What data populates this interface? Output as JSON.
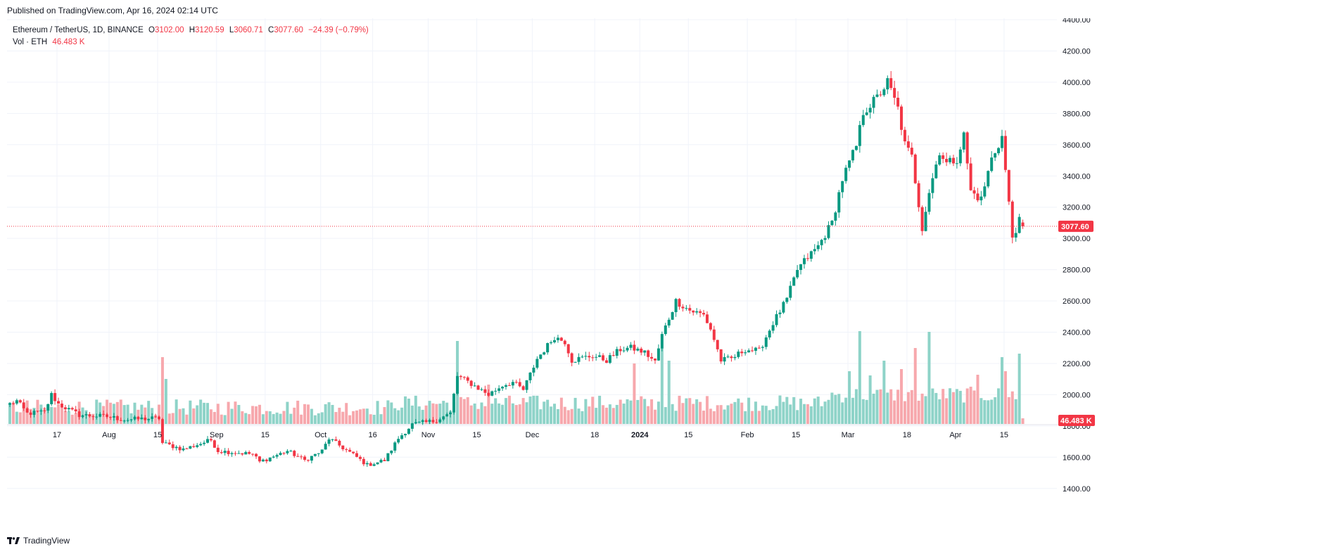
{
  "header": {
    "published": "Published on TradingView.com, Apr 16, 2024 02:14 UTC"
  },
  "legend": {
    "symbol": "Ethereum / TetherUS, 1D, BINANCE",
    "open_label": "O",
    "open": "3102.00",
    "high_label": "H",
    "high": "3120.59",
    "low_label": "L",
    "low": "3060.71",
    "close_label": "C",
    "close": "3077.60",
    "change": "−24.39 (−0.79%)",
    "vol_label": "Vol · ETH",
    "vol_value": "46.483 K"
  },
  "footer": {
    "brand": "TradingView"
  },
  "colors": {
    "up": "#089981",
    "down": "#f23645",
    "vol_up": "#8ed3c8",
    "vol_down": "#f7a8ad",
    "grid": "#f0f3fa",
    "axis_text": "#131722"
  },
  "chart_data": {
    "type": "candlestick",
    "price_axis": {
      "ticks": [
        "4400.00",
        "4200.00",
        "4000.00",
        "3800.00",
        "3600.00",
        "3400.00",
        "3200.00",
        "3000.00",
        "2800.00",
        "2600.00",
        "2400.00",
        "2200.00",
        "2000.00",
        "1800.00",
        "1600.00",
        "1400.00"
      ],
      "last_price_label": "3077.60",
      "last_volume_label": "46.483 K",
      "scale": "linear"
    },
    "time_axis": {
      "labels": [
        {
          "text": "17",
          "i": 14
        },
        {
          "text": "Aug",
          "i": 29
        },
        {
          "text": "15",
          "i": 43
        },
        {
          "text": "Sep",
          "i": 60
        },
        {
          "text": "15",
          "i": 74
        },
        {
          "text": "Oct",
          "i": 90
        },
        {
          "text": "16",
          "i": 105
        },
        {
          "text": "Nov",
          "i": 121
        },
        {
          "text": "15",
          "i": 135
        },
        {
          "text": "Dec",
          "i": 151
        },
        {
          "text": "18",
          "i": 169
        },
        {
          "text": "2024",
          "i": 182,
          "bold": true
        },
        {
          "text": "15",
          "i": 196
        },
        {
          "text": "Feb",
          "i": 213
        },
        {
          "text": "15",
          "i": 227
        },
        {
          "text": "Mar",
          "i": 242
        },
        {
          "text": "18",
          "i": 259
        },
        {
          "text": "Apr",
          "i": 273
        },
        {
          "text": "15",
          "i": 287
        }
      ]
    },
    "price_keypoints": [
      [
        0,
        1940
      ],
      [
        2,
        1960
      ],
      [
        5,
        1880
      ],
      [
        10,
        1890
      ],
      [
        12,
        2000
      ],
      [
        14,
        1940
      ],
      [
        20,
        1870
      ],
      [
        28,
        1860
      ],
      [
        33,
        1840
      ],
      [
        43,
        1850
      ],
      [
        44,
        1690
      ],
      [
        50,
        1650
      ],
      [
        58,
        1710
      ],
      [
        60,
        1640
      ],
      [
        70,
        1620
      ],
      [
        72,
        1570
      ],
      [
        80,
        1640
      ],
      [
        85,
        1580
      ],
      [
        90,
        1640
      ],
      [
        92,
        1720
      ],
      [
        96,
        1660
      ],
      [
        100,
        1600
      ],
      [
        103,
        1550
      ],
      [
        108,
        1580
      ],
      [
        112,
        1720
      ],
      [
        116,
        1810
      ],
      [
        122,
        1830
      ],
      [
        127,
        1880
      ],
      [
        129,
        2120
      ],
      [
        133,
        2070
      ],
      [
        138,
        2000
      ],
      [
        142,
        2060
      ],
      [
        145,
        2080
      ],
      [
        148,
        2030
      ],
      [
        152,
        2230
      ],
      [
        157,
        2370
      ],
      [
        160,
        2340
      ],
      [
        162,
        2220
      ],
      [
        168,
        2250
      ],
      [
        172,
        2220
      ],
      [
        176,
        2290
      ],
      [
        179,
        2300
      ],
      [
        183,
        2270
      ],
      [
        186,
        2210
      ],
      [
        188,
        2380
      ],
      [
        192,
        2600
      ],
      [
        196,
        2540
      ],
      [
        200,
        2510
      ],
      [
        202,
        2420
      ],
      [
        205,
        2220
      ],
      [
        208,
        2230
      ],
      [
        212,
        2290
      ],
      [
        216,
        2280
      ],
      [
        220,
        2460
      ],
      [
        224,
        2610
      ],
      [
        227,
        2800
      ],
      [
        230,
        2880
      ],
      [
        233,
        2950
      ],
      [
        237,
        3100
      ],
      [
        240,
        3380
      ],
      [
        244,
        3590
      ],
      [
        246,
        3810
      ],
      [
        250,
        3900
      ],
      [
        253,
        4000
      ],
      [
        256,
        3830
      ],
      [
        258,
        3600
      ],
      [
        260,
        3520
      ],
      [
        263,
        3070
      ],
      [
        265,
        3300
      ],
      [
        268,
        3560
      ],
      [
        270,
        3480
      ],
      [
        273,
        3510
      ],
      [
        275,
        3660
      ],
      [
        277,
        3300
      ],
      [
        280,
        3250
      ],
      [
        283,
        3510
      ],
      [
        286,
        3650
      ],
      [
        288,
        3220
      ],
      [
        289,
        3010
      ],
      [
        291,
        3110
      ],
      [
        292,
        3101
      ]
    ],
    "last_candle": {
      "open": 3102.0,
      "high": 3120.59,
      "low": 3060.71,
      "close": 3077.6
    },
    "volume_highlights": [
      [
        44,
        950
      ],
      [
        45,
        640
      ],
      [
        129,
        1180
      ],
      [
        138,
        560
      ],
      [
        180,
        860
      ],
      [
        188,
        1080
      ],
      [
        190,
        900
      ],
      [
        242,
        750
      ],
      [
        245,
        1320
      ],
      [
        248,
        690
      ],
      [
        252,
        900
      ],
      [
        257,
        780
      ],
      [
        261,
        1080
      ],
      [
        265,
        1310
      ],
      [
        279,
        700
      ],
      [
        286,
        950
      ],
      [
        287,
        750
      ],
      [
        291,
        1000
      ],
      [
        292,
        80
      ]
    ]
  }
}
